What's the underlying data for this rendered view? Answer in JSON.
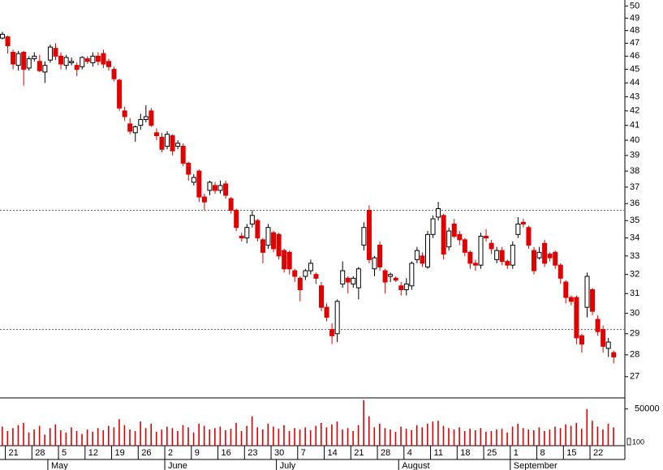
{
  "chart_data": {
    "type": "candlestick",
    "log_y": true,
    "ylim": [
      26.1,
      50.5
    ],
    "yticks": [
      27,
      28,
      29,
      30,
      31,
      32,
      33,
      34,
      35,
      36,
      37,
      38,
      39,
      40,
      41,
      42,
      43,
      44,
      45,
      46,
      47,
      48,
      49,
      50
    ],
    "reference_lines": [
      35.6,
      29.2
    ],
    "up_color": "#ffffff",
    "down_color": "#e00000",
    "volume_color": "#e00000",
    "volume_ylim": [
      0,
      64000
    ],
    "volume_yticks": [
      50000
    ],
    "volume_unit_label": "100",
    "categories": [
      null,
      "21",
      null,
      null,
      null,
      null,
      "28",
      null,
      null,
      null,
      null,
      "5",
      null,
      null,
      null,
      null,
      "12",
      null,
      null,
      null,
      null,
      "19",
      null,
      null,
      null,
      null,
      "26",
      null,
      null,
      null,
      null,
      "2",
      null,
      null,
      null,
      null,
      "9",
      null,
      null,
      null,
      null,
      "16",
      null,
      null,
      null,
      null,
      "23",
      null,
      null,
      null,
      null,
      "30",
      null,
      null,
      null,
      null,
      "7",
      null,
      null,
      null,
      null,
      "14",
      null,
      null,
      null,
      null,
      "21",
      null,
      null,
      null,
      null,
      "28",
      null,
      null,
      null,
      null,
      "4",
      null,
      null,
      null,
      null,
      "11",
      null,
      null,
      null,
      null,
      "18",
      null,
      null,
      null,
      null,
      "25",
      null,
      null,
      null,
      null,
      "1",
      null,
      null,
      null,
      null,
      "8",
      null,
      null,
      null,
      null,
      "15",
      null,
      null,
      null,
      null,
      "22",
      null,
      null,
      null,
      null
    ],
    "months": [
      null,
      null,
      null,
      null,
      null,
      null,
      null,
      null,
      null,
      "May",
      null,
      null,
      null,
      null,
      null,
      null,
      null,
      null,
      null,
      null,
      null,
      null,
      null,
      null,
      null,
      null,
      null,
      null,
      null,
      null,
      null,
      "June",
      null,
      null,
      null,
      null,
      null,
      null,
      null,
      null,
      null,
      null,
      null,
      null,
      null,
      null,
      null,
      null,
      null,
      null,
      null,
      null,
      "July",
      null,
      null,
      null,
      null,
      null,
      null,
      null,
      null,
      null,
      null,
      null,
      null,
      null,
      null,
      null,
      null,
      null,
      null,
      null,
      null,
      null,
      null,
      "August",
      null,
      null,
      null,
      null,
      null,
      null,
      null,
      null,
      null,
      null,
      null,
      null,
      null,
      null,
      null,
      null,
      null,
      null,
      null,
      null,
      "September",
      null,
      null,
      null,
      null,
      null,
      null,
      null,
      null,
      null,
      null,
      null,
      null,
      null,
      null,
      null,
      null,
      null,
      null,
      null
    ],
    "open": [
      47.4,
      47.5,
      46.3,
      45.3,
      46.3,
      45.1,
      45.8,
      45.6,
      44.8,
      45.7,
      46.6,
      46.0,
      45.3,
      45.5,
      45.3,
      45.2,
      45.8,
      45.5,
      46.0,
      46.2,
      45.6,
      45.0,
      44.2,
      42.0,
      41.1,
      40.5,
      41.0,
      41.4,
      42.0,
      40.5,
      40.2,
      39.6,
      40.3,
      39.6,
      39.6,
      38.5,
      37.3,
      38.0,
      36.4,
      36.8,
      37.1,
      36.8,
      37.2,
      36.3,
      35.6,
      34.1,
      34.0,
      34.8,
      35.0,
      33.9,
      33.6,
      34.3,
      34.2,
      33.3,
      33.2,
      32.2,
      31.8,
      31.9,
      32.2,
      32.0,
      31.4,
      30.3,
      29.2,
      29.0,
      31.5,
      31.8,
      31.5,
      31.3,
      33.6,
      35.6,
      32.3,
      33.6,
      32.2,
      31.9,
      31.8,
      31.4,
      31.2,
      31.4,
      32.8,
      33.0,
      32.4,
      34.2,
      35.2,
      35.3,
      33.5,
      34.8,
      34.2,
      33.9,
      33.2,
      32.6,
      32.5,
      34.1,
      33.7,
      32.8,
      33.3,
      32.7,
      32.5,
      34.2,
      34.9,
      34.6,
      33.3,
      32.9,
      33.7,
      33.1,
      33.2,
      32.5,
      31.6,
      30.8,
      30.8,
      28.9,
      30.3,
      31.2,
      29.7,
      29.2,
      28.3,
      28.1
    ],
    "high": [
      47.9,
      47.6,
      46.5,
      46.4,
      46.4,
      46.0,
      46.3,
      46.1,
      45.6,
      46.9,
      47.0,
      46.3,
      46.1,
      45.9,
      45.5,
      46.0,
      46.0,
      46.3,
      46.3,
      46.5,
      45.8,
      45.2,
      44.3,
      42.3,
      41.5,
      41.0,
      41.8,
      42.4,
      42.2,
      40.8,
      40.5,
      40.6,
      40.4,
      40.0,
      39.8,
      38.6,
      37.8,
      38.1,
      36.6,
      37.4,
      37.3,
      37.4,
      37.4,
      36.4,
      35.7,
      34.3,
      34.8,
      35.6,
      35.1,
      34.0,
      34.8,
      34.4,
      34.3,
      33.4,
      33.3,
      32.3,
      31.9,
      32.3,
      32.8,
      32.1,
      31.6,
      30.5,
      29.5,
      30.7,
      32.7,
      31.9,
      31.9,
      32.4,
      34.9,
      35.9,
      33.0,
      33.8,
      32.3,
      32.1,
      31.9,
      31.6,
      31.8,
      32.7,
      33.5,
      33.2,
      34.4,
      35.3,
      36.1,
      35.4,
      34.6,
      35.1,
      34.4,
      34.0,
      33.3,
      32.8,
      34.3,
      34.5,
      33.9,
      33.5,
      33.5,
      32.8,
      33.8,
      35.2,
      35.1,
      34.7,
      33.5,
      33.5,
      33.9,
      33.2,
      33.3,
      32.6,
      31.7,
      30.9,
      30.9,
      29.0,
      32.1,
      31.3,
      29.9,
      29.4,
      28.8,
      28.2
    ],
    "low": [
      47.3,
      46.2,
      45.0,
      44.9,
      43.8,
      44.9,
      45.6,
      44.8,
      44.0,
      45.5,
      45.7,
      45.0,
      45.0,
      45.3,
      44.5,
      45.0,
      45.4,
      45.2,
      45.3,
      45.1,
      44.9,
      44.1,
      42.0,
      41.3,
      40.4,
      39.9,
      40.7,
      41.2,
      40.9,
      40.0,
      39.2,
      39.4,
      39.0,
      39.4,
      38.3,
      37.4,
      37.1,
      36.1,
      35.6,
      36.5,
      36.6,
      36.6,
      36.3,
      35.4,
      34.4,
      33.8,
      33.7,
      34.6,
      33.8,
      32.6,
      33.4,
      33.2,
      32.8,
      32.1,
      32.0,
      31.6,
      30.6,
      31.7,
      32.0,
      31.5,
      30.1,
      29.6,
      28.5,
      28.6,
      31.3,
      31.0,
      31.3,
      30.7,
      33.3,
      32.6,
      31.9,
      32.2,
      31.0,
      31.6,
      31.6,
      30.9,
      30.9,
      31.2,
      32.6,
      32.4,
      32.3,
      34.0,
      35.0,
      32.8,
      33.3,
      34.0,
      33.6,
      33.0,
      32.3,
      32.2,
      32.3,
      33.8,
      33.1,
      32.6,
      32.5,
      32.3,
      32.3,
      34.0,
      34.6,
      33.4,
      32.0,
      32.8,
      32.4,
      32.7,
      32.3,
      31.5,
      30.5,
      30.4,
      28.5,
      28.1,
      29.8,
      29.9,
      28.9,
      28.1,
      27.9,
      27.6
    ],
    "close": [
      47.7,
      46.8,
      45.4,
      46.2,
      45.0,
      45.8,
      46.0,
      44.9,
      45.3,
      46.7,
      46.0,
      45.4,
      45.9,
      45.6,
      45.0,
      45.9,
      45.6,
      46.0,
      45.6,
      45.4,
      45.2,
      44.3,
      42.2,
      41.6,
      40.6,
      40.9,
      41.4,
      41.6,
      41.0,
      40.3,
      39.4,
      40.4,
      39.3,
      39.8,
      38.5,
      37.8,
      37.6,
      36.4,
      36.1,
      37.3,
      36.8,
      37.1,
      36.5,
      35.6,
      34.6,
      34.0,
      34.6,
      35.3,
      34.0,
      33.2,
      34.6,
      33.4,
      33.0,
      32.3,
      32.3,
      31.9,
      31.2,
      32.2,
      32.6,
      31.8,
      30.3,
      29.8,
      28.9,
      30.6,
      32.2,
      31.6,
      31.8,
      32.3,
      34.6,
      32.8,
      32.9,
      32.4,
      31.6,
      32.0,
      31.7,
      31.2,
      31.5,
      32.6,
      33.3,
      32.6,
      34.2,
      35.1,
      35.7,
      33.1,
      34.4,
      34.1,
      33.9,
      33.2,
      32.6,
      32.5,
      34.1,
      34.0,
      33.4,
      33.3,
      32.7,
      32.5,
      33.6,
      34.8,
      34.8,
      33.6,
      32.2,
      33.2,
      32.6,
      32.9,
      32.5,
      31.8,
      30.8,
      30.6,
      28.8,
      28.5,
      31.9,
      30.1,
      29.1,
      28.4,
      28.6,
      27.9
    ],
    "volume": [
      26000,
      20000,
      24000,
      28000,
      31000,
      18000,
      22000,
      27000,
      15000,
      24000,
      29000,
      21000,
      18000,
      25000,
      20000,
      16000,
      22000,
      19000,
      24000,
      21000,
      27000,
      25000,
      36000,
      28000,
      22000,
      20000,
      33000,
      24000,
      30000,
      19000,
      22000,
      26000,
      24000,
      20000,
      28000,
      25000,
      18000,
      30000,
      27000,
      22000,
      24000,
      26000,
      21000,
      23000,
      31000,
      20000,
      27000,
      40000,
      25000,
      22000,
      30000,
      26000,
      23000,
      28000,
      20000,
      24000,
      22000,
      25000,
      21000,
      27000,
      31000,
      25000,
      29000,
      33000,
      22000,
      24000,
      20000,
      28000,
      62000,
      40000,
      25000,
      30000,
      24000,
      22000,
      19000,
      26000,
      23000,
      21000,
      28000,
      25000,
      30000,
      33000,
      34000,
      27000,
      24000,
      22000,
      25000,
      20000,
      23000,
      21000,
      24000,
      19000,
      20000,
      22000,
      23000,
      18000,
      26000,
      30000,
      24000,
      22000,
      21000,
      25000,
      20000,
      22000,
      26000,
      24000,
      29000,
      27000,
      31000,
      23000,
      50000,
      34000,
      26000,
      22000,
      30000,
      25000
    ]
  }
}
